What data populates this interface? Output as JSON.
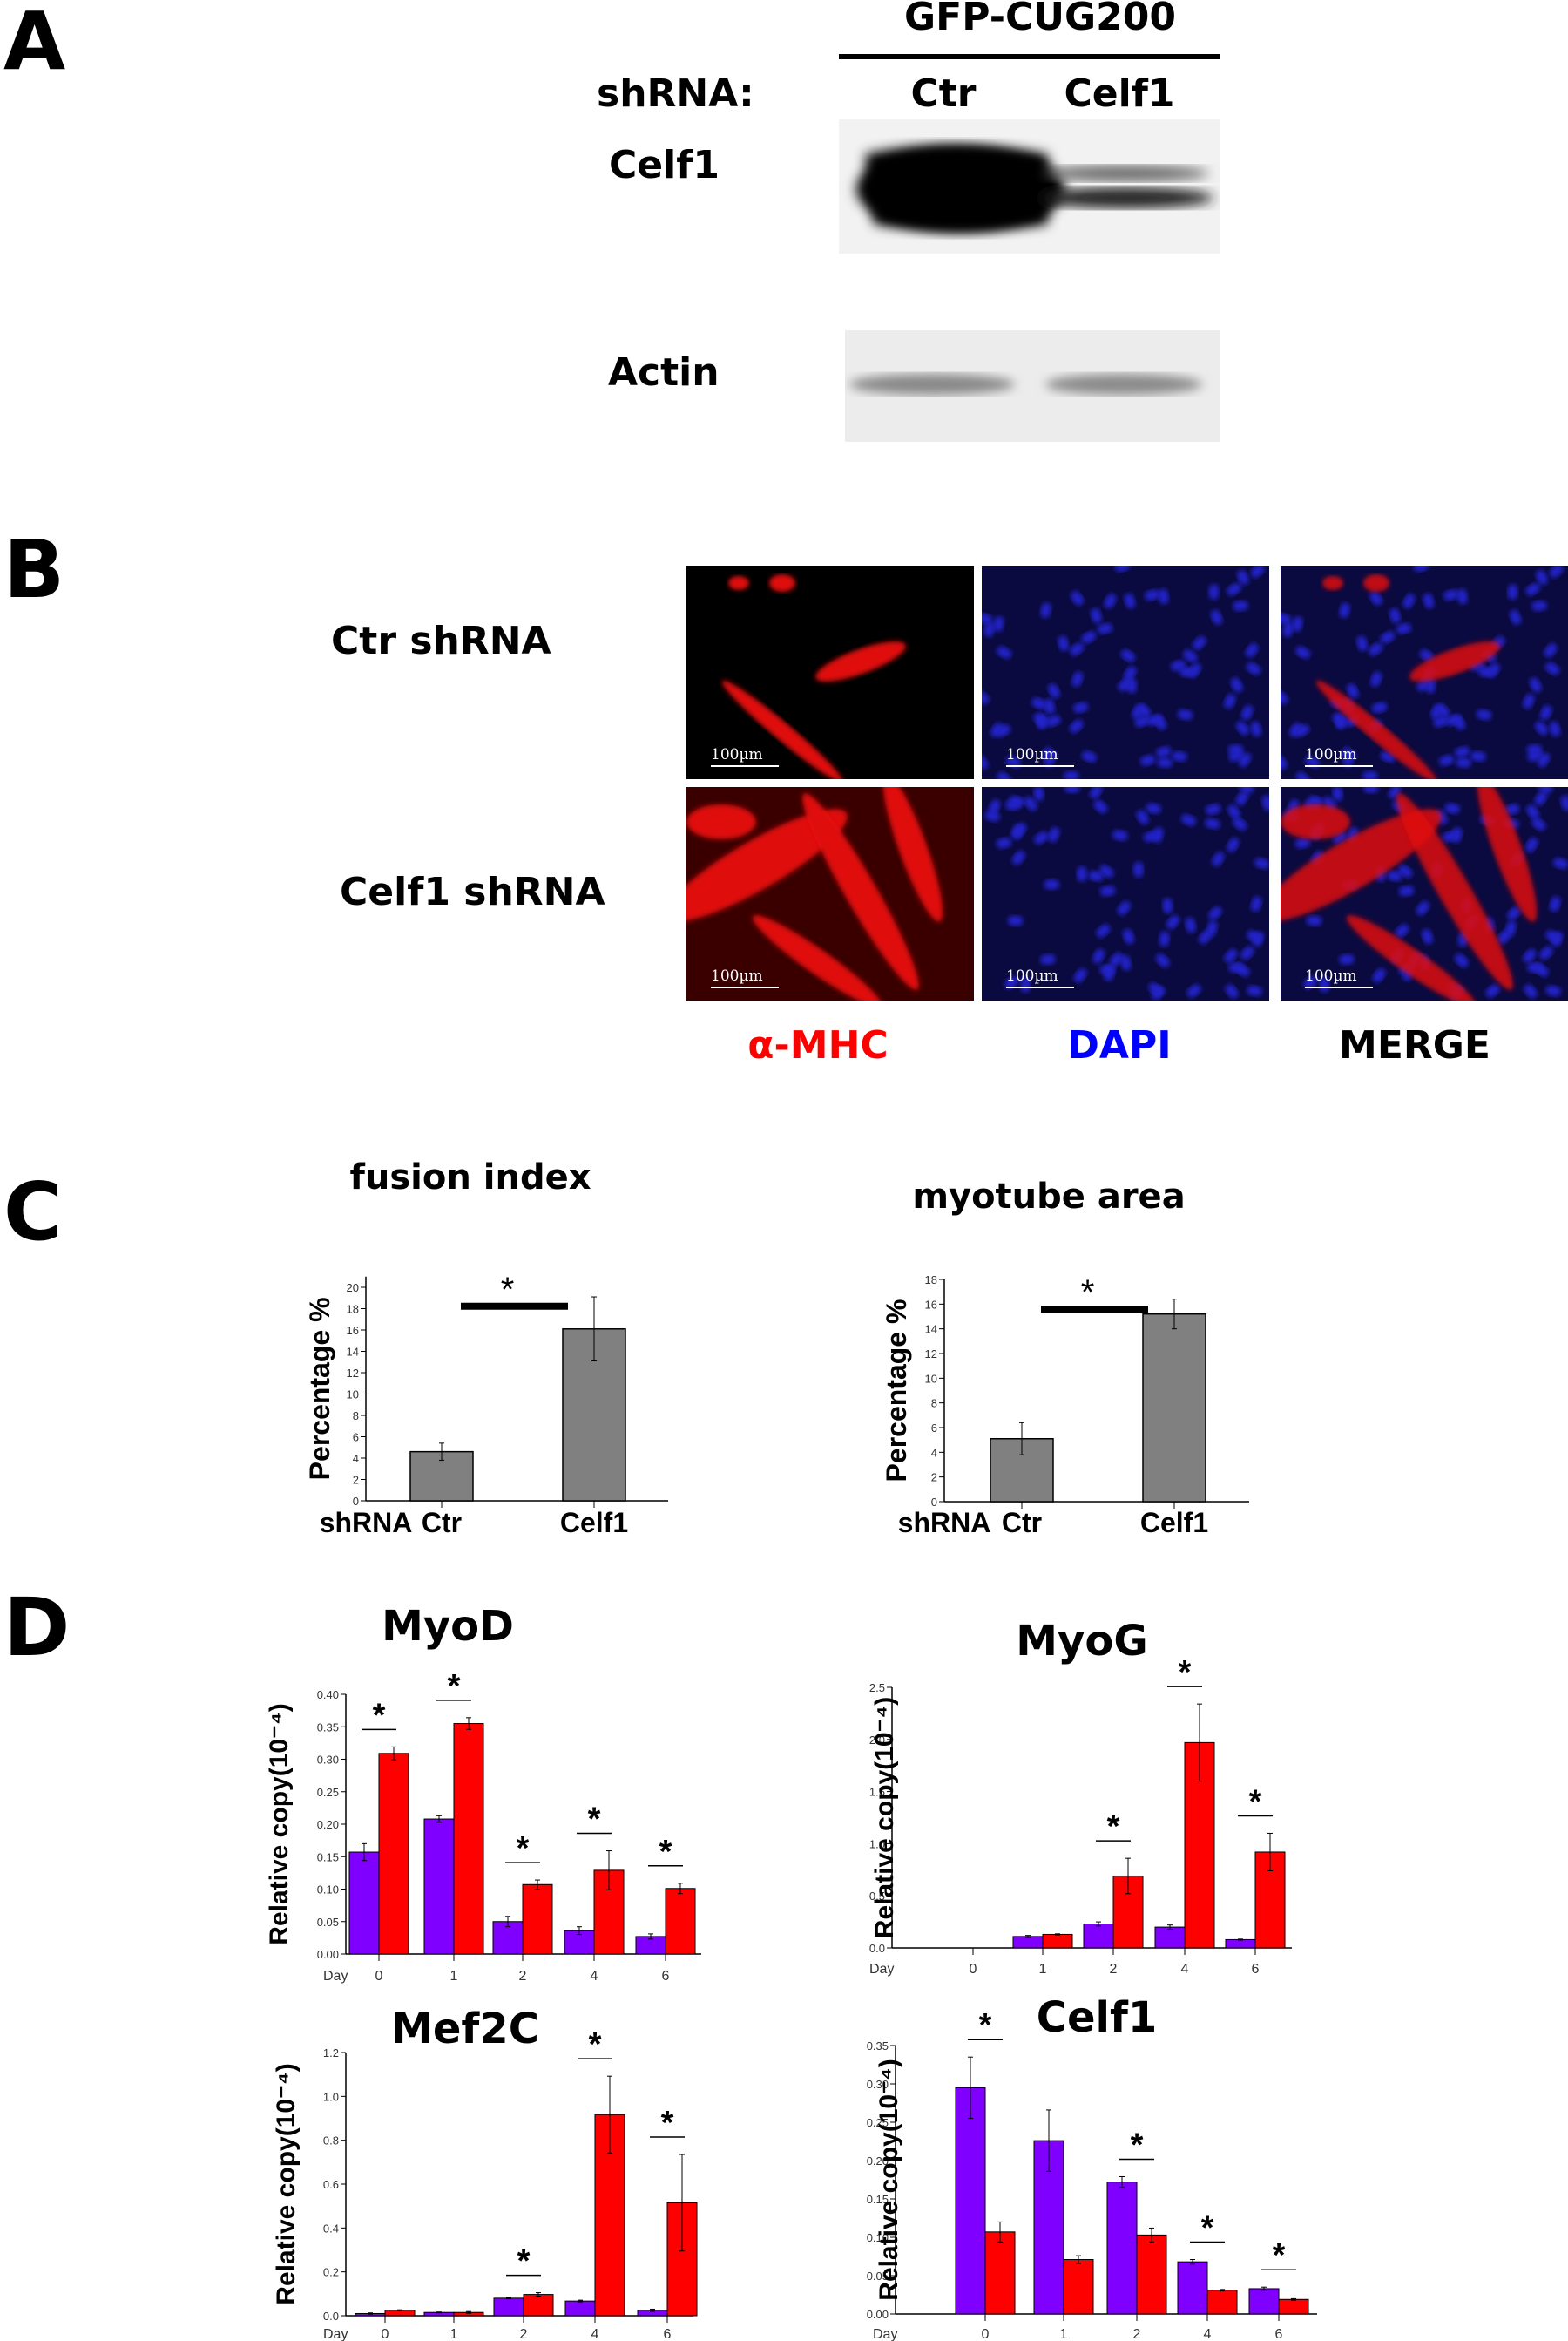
{
  "panels": {
    "a": "A",
    "b": "B",
    "c": "C",
    "d": "D"
  },
  "panel_a": {
    "construct": "GFP-CUG200",
    "shrna_label": "shRNA:",
    "lanes": [
      "Ctr",
      "Celf1"
    ],
    "blots": [
      "Celf1",
      "Actin"
    ]
  },
  "panel_b": {
    "rows": [
      "Ctr shRNA",
      "Celf1 shRNA"
    ],
    "columns": [
      {
        "label": "α-MHC",
        "color": "#ff0000"
      },
      {
        "label": "DAPI",
        "color": "#0000ff"
      },
      {
        "label": "MERGE",
        "color": "#000000"
      }
    ],
    "scale_bar": "100µm"
  },
  "chart_data": [
    {
      "type": "bar",
      "title": "fusion index",
      "ylabel": "Percentage %",
      "xlabel": "shRNA",
      "categories": [
        "Ctr",
        "Celf1"
      ],
      "values": [
        4.6,
        16.1
      ],
      "errors": [
        0.8,
        3.0
      ],
      "ylim": [
        0,
        21
      ],
      "y_ticks": [
        0,
        2,
        4,
        6,
        8,
        10,
        12,
        14,
        16,
        18,
        20
      ],
      "significance": "*",
      "bar_color": "#808080"
    },
    {
      "type": "bar",
      "title": "myotube area",
      "ylabel": "Percentage %",
      "xlabel": "shRNA",
      "categories": [
        "Ctr",
        "Celf1"
      ],
      "values": [
        5.1,
        15.2
      ],
      "errors": [
        1.3,
        1.2
      ],
      "ylim": [
        0,
        18
      ],
      "y_ticks": [
        0,
        2,
        4,
        6,
        8,
        10,
        12,
        14,
        16,
        18
      ],
      "significance": "*",
      "bar_color": "#808080"
    },
    {
      "type": "bar",
      "title": "MyoD",
      "ylabel": "Relative copy(10⁻⁴)",
      "xlabel": "Day",
      "categories": [
        "0",
        "1",
        "2",
        "4",
        "6"
      ],
      "ylim": [
        0,
        0.4
      ],
      "y_ticks": [
        "0.00",
        "0.05",
        "0.10",
        "0.15",
        "0.20",
        "0.25",
        "0.30",
        "0.35",
        "0.40"
      ],
      "series": [
        {
          "color": "#8000ff",
          "values": [
            0.157,
            0.208,
            0.05,
            0.036,
            0.027
          ],
          "errors": [
            0.013,
            0.005,
            0.008,
            0.006,
            0.004
          ]
        },
        {
          "color": "#ff0000",
          "values": [
            0.309,
            0.355,
            0.107,
            0.129,
            0.101
          ],
          "errors": [
            0.01,
            0.009,
            0.007,
            0.03,
            0.008
          ]
        }
      ],
      "significant": [
        true,
        true,
        true,
        true,
        true
      ]
    },
    {
      "type": "bar",
      "title": "MyoG",
      "ylabel": "Relative copy(10⁻⁴)",
      "xlabel": "Day",
      "categories": [
        "0",
        "1",
        "2",
        "4",
        "6"
      ],
      "ylim": [
        0,
        2.5
      ],
      "y_ticks": [
        "0.0",
        "0.5",
        "1.0",
        "1.5",
        "2.0",
        "2.5"
      ],
      "series": [
        {
          "color": "#8000ff",
          "values": [
            0,
            0.11,
            0.23,
            0.2,
            0.08
          ],
          "errors": [
            0,
            0.01,
            0.02,
            0.02,
            0.005
          ]
        },
        {
          "color": "#ff0000",
          "values": [
            0,
            0.13,
            0.69,
            1.97,
            0.92
          ],
          "errors": [
            0,
            0.005,
            0.17,
            0.37,
            0.18
          ]
        }
      ],
      "significant": [
        false,
        false,
        true,
        true,
        true
      ]
    },
    {
      "type": "bar",
      "title": "Mef2C",
      "ylabel": "Relative copy(10⁻⁴)",
      "xlabel": "Day",
      "categories": [
        "0",
        "1",
        "2",
        "4",
        "6"
      ],
      "ylim": [
        0,
        1.2
      ],
      "y_ticks": [
        "0.0",
        "0.2",
        "0.4",
        "0.6",
        "0.8",
        "1.0",
        "1.2"
      ],
      "series": [
        {
          "color": "#8000ff",
          "values": [
            0.01,
            0.015,
            0.08,
            0.067,
            0.025
          ],
          "errors": [
            0.003,
            0.002,
            0.003,
            0.004,
            0.005
          ]
        },
        {
          "color": "#ff0000",
          "values": [
            0.025,
            0.015,
            0.097,
            0.917,
            0.515
          ],
          "errors": [
            0.002,
            0.004,
            0.008,
            0.175,
            0.22
          ]
        }
      ],
      "significant": [
        false,
        false,
        true,
        true,
        true
      ]
    },
    {
      "type": "bar",
      "title": "Celf1",
      "ylabel": "Relative copy(10⁻⁴)",
      "xlabel": "Day",
      "categories": [
        "0",
        "1",
        "2",
        "4",
        "6"
      ],
      "ylim": [
        0,
        0.35
      ],
      "y_ticks": [
        "0.00",
        "0.05",
        "0.10",
        "0.15",
        "0.20",
        "0.25",
        "0.30",
        "0.35"
      ],
      "series": [
        {
          "color": "#8000ff",
          "values": [
            0.295,
            0.226,
            0.172,
            0.068,
            0.033
          ],
          "errors": [
            0.04,
            0.04,
            0.007,
            0.003,
            0.002
          ]
        },
        {
          "color": "#ff0000",
          "values": [
            0.107,
            0.071,
            0.103,
            0.031,
            0.019
          ],
          "errors": [
            0.013,
            0.005,
            0.009,
            0.001,
            0.001
          ]
        }
      ],
      "significant": [
        true,
        false,
        true,
        true,
        true
      ]
    }
  ]
}
